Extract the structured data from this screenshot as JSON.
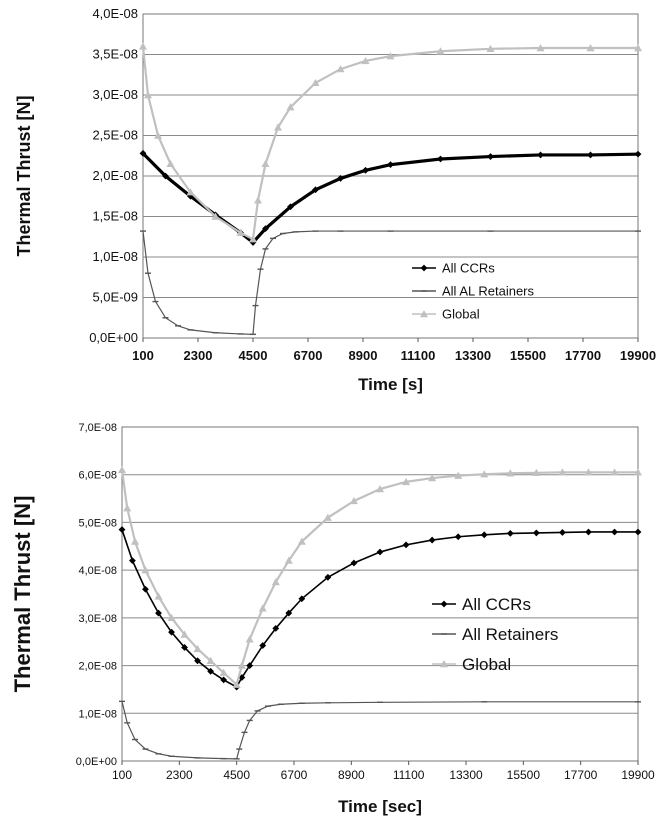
{
  "colors": {
    "ccr": "#000000",
    "retainer": "#555555",
    "global": "#c0c0c0",
    "grid": "#8a8a8a"
  },
  "chart_data": [
    {
      "type": "line",
      "xlabel": "Time [s]",
      "ylabel": "Thermal Thrust [N]",
      "ylim": [
        0,
        4e-08
      ],
      "xlim": [
        100,
        19900
      ],
      "x_ticks": [
        "100",
        "2300",
        "4500",
        "6700",
        "8900",
        "11100",
        "13300",
        "15500",
        "17700",
        "19900"
      ],
      "y_ticks": [
        "0,0E+00",
        "5,0E-09",
        "1,0E-08",
        "1,5E-08",
        "2,0E-08",
        "2,5E-08",
        "3,0E-08",
        "3,5E-08",
        "4,0E-08"
      ],
      "grid": "horizontal",
      "legend_position": "right-center",
      "series": [
        {
          "name": "All CCRs",
          "marker": "diamond",
          "color": "#000000",
          "x": [
            100,
            1000,
            2000,
            3000,
            4000,
            4500,
            5000,
            6000,
            7000,
            8000,
            9000,
            10000,
            12000,
            14000,
            16000,
            18000,
            19900
          ],
          "y": [
            2.28e-08,
            2e-08,
            1.75e-08,
            1.52e-08,
            1.3e-08,
            1.18e-08,
            1.35e-08,
            1.62e-08,
            1.83e-08,
            1.97e-08,
            2.07e-08,
            2.14e-08,
            2.21e-08,
            2.24e-08,
            2.26e-08,
            2.26e-08,
            2.27e-08
          ]
        },
        {
          "name": "All AL Retainers",
          "marker": "dash",
          "color": "#555555",
          "x": [
            100,
            300,
            600,
            1000,
            1500,
            2000,
            3000,
            4000,
            4500,
            4600,
            4800,
            5000,
            5300,
            5700,
            6200,
            7000,
            8000,
            10000,
            14000,
            19900
          ],
          "y": [
            1.32e-08,
            8e-09,
            4.5e-09,
            2.5e-09,
            1.5e-09,
            1e-09,
            6.5e-10,
            5e-10,
            4.5e-10,
            4e-09,
            8.5e-09,
            1.1e-08,
            1.23e-08,
            1.29e-08,
            1.31e-08,
            1.32e-08,
            1.32e-08,
            1.32e-08,
            1.32e-08,
            1.32e-08
          ]
        },
        {
          "name": "Global",
          "marker": "triangle",
          "color": "#c0c0c0",
          "x": [
            100,
            300,
            700,
            1200,
            2000,
            3000,
            4000,
            4500,
            4700,
            5000,
            5500,
            6000,
            7000,
            8000,
            9000,
            10000,
            12000,
            14000,
            16000,
            18000,
            19900
          ],
          "y": [
            3.6e-08,
            3e-08,
            2.5e-08,
            2.15e-08,
            1.8e-08,
            1.5e-08,
            1.3e-08,
            1.22e-08,
            1.7e-08,
            2.15e-08,
            2.6e-08,
            2.85e-08,
            3.15e-08,
            3.32e-08,
            3.42e-08,
            3.48e-08,
            3.54e-08,
            3.57e-08,
            3.58e-08,
            3.58e-08,
            3.58e-08
          ]
        }
      ]
    },
    {
      "type": "line",
      "xlabel": "Time [sec]",
      "ylabel": "Thermal Thrust [N]",
      "ylim": [
        0,
        7e-08
      ],
      "xlim": [
        100,
        19900
      ],
      "x_ticks": [
        "100",
        "2300",
        "4500",
        "6700",
        "8900",
        "11100",
        "13300",
        "15500",
        "17700",
        "19900"
      ],
      "y_ticks": [
        "0,0E+00",
        "1,0E-08",
        "2,0E-08",
        "3,0E-08",
        "4,0E-08",
        "5,0E-08",
        "6,0E-08",
        "7,0E-08"
      ],
      "grid": "horizontal",
      "legend_position": "right-center",
      "series": [
        {
          "name": "All CCRs",
          "marker": "diamond",
          "color": "#000000",
          "x": [
            100,
            500,
            1000,
            1500,
            2000,
            2500,
            3000,
            3500,
            4000,
            4500,
            4700,
            5000,
            5500,
            6000,
            6500,
            7000,
            8000,
            9000,
            10000,
            11000,
            12000,
            13000,
            14000,
            15000,
            16000,
            17000,
            18000,
            19000,
            19900
          ],
          "y": [
            4.85e-08,
            4.2e-08,
            3.6e-08,
            3.1e-08,
            2.7e-08,
            2.38e-08,
            2.1e-08,
            1.88e-08,
            1.7e-08,
            1.55e-08,
            1.75e-08,
            2e-08,
            2.42e-08,
            2.78e-08,
            3.1e-08,
            3.4e-08,
            3.85e-08,
            4.15e-08,
            4.38e-08,
            4.53e-08,
            4.63e-08,
            4.7e-08,
            4.74e-08,
            4.77e-08,
            4.78e-08,
            4.79e-08,
            4.8e-08,
            4.8e-08,
            4.8e-08
          ]
        },
        {
          "name": "All Retainers",
          "marker": "dash",
          "color": "#555555",
          "x": [
            100,
            300,
            600,
            1000,
            1500,
            2000,
            3000,
            4000,
            4500,
            4600,
            4800,
            5000,
            5300,
            5700,
            6200,
            7000,
            8000,
            10000,
            14000,
            19900
          ],
          "y": [
            1.25e-08,
            8e-09,
            4.5e-09,
            2.5e-09,
            1.5e-09,
            1e-09,
            6.5e-10,
            5e-10,
            4.5e-10,
            2.5e-09,
            6e-09,
            8.5e-09,
            1.05e-08,
            1.15e-08,
            1.19e-08,
            1.21e-08,
            1.22e-08,
            1.23e-08,
            1.24e-08,
            1.24e-08
          ]
        },
        {
          "name": "Global",
          "marker": "triangle",
          "color": "#c0c0c0",
          "x": [
            100,
            300,
            600,
            1000,
            1500,
            2000,
            2500,
            3000,
            3500,
            4000,
            4500,
            4700,
            5000,
            5500,
            6000,
            6500,
            7000,
            8000,
            9000,
            10000,
            11000,
            12000,
            13000,
            14000,
            15000,
            16000,
            17000,
            18000,
            19000,
            19900
          ],
          "y": [
            6.1e-08,
            5.3e-08,
            4.6e-08,
            4e-08,
            3.45e-08,
            3e-08,
            2.65e-08,
            2.35e-08,
            2.1e-08,
            1.85e-08,
            1.6e-08,
            2e-08,
            2.55e-08,
            3.2e-08,
            3.75e-08,
            4.2e-08,
            4.6e-08,
            5.1e-08,
            5.45e-08,
            5.7e-08,
            5.85e-08,
            5.93e-08,
            5.98e-08,
            6.01e-08,
            6.03e-08,
            6.04e-08,
            6.05e-08,
            6.05e-08,
            6.05e-08,
            6.05e-08
          ]
        }
      ]
    }
  ]
}
